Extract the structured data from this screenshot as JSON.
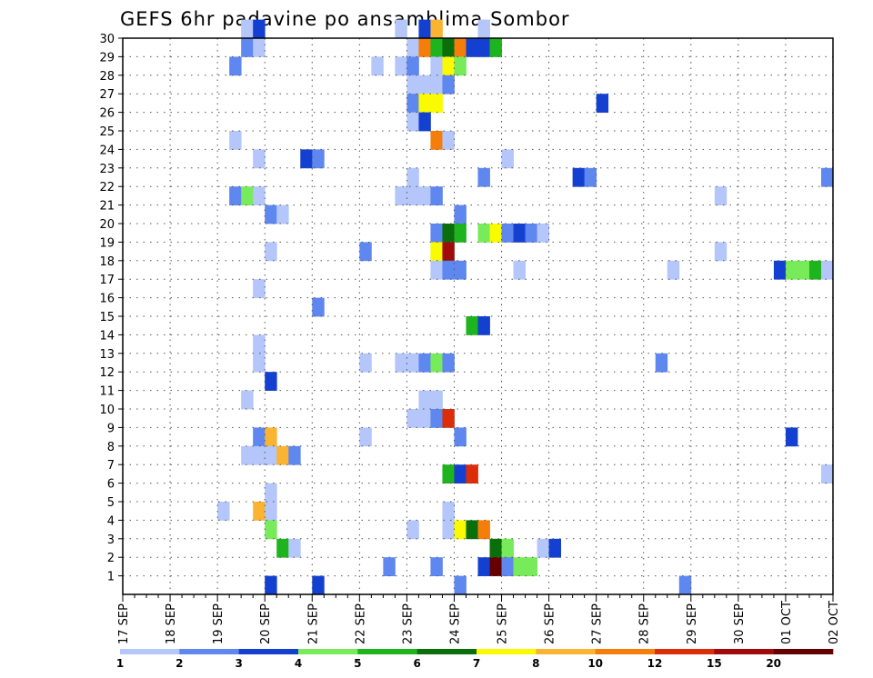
{
  "chart_data": {
    "type": "heatmap",
    "title": "GEFS 6hr padavine po ansamblima Sombor",
    "xlabel": "",
    "ylabel": "",
    "x_tick_labels": [
      "17 SEP",
      "18 SEP",
      "19 SEP",
      "20 SEP",
      "21 SEP",
      "22 SEP",
      "23 SEP",
      "24 SEP",
      "25 SEP",
      "26 SEP",
      "27 SEP",
      "28 SEP",
      "29 SEP",
      "30 SEP",
      "01 OCT",
      "02 OCT"
    ],
    "y_tick_labels": [
      "1",
      "2",
      "3",
      "4",
      "5",
      "6",
      "7",
      "8",
      "9",
      "10",
      "11",
      "12",
      "13",
      "14",
      "15",
      "16",
      "17",
      "18",
      "19",
      "20",
      "21",
      "22",
      "23",
      "24",
      "25",
      "26",
      "27",
      "28",
      "29",
      "30"
    ],
    "xlim_steps": [
      0,
      60
    ],
    "ylim_members": [
      0,
      30
    ],
    "grid": true,
    "legend_placement": "bottom",
    "colorbar": {
      "labels": [
        "1",
        "2",
        "3",
        "4",
        "5",
        "6",
        "7",
        "8",
        "10",
        "12",
        "15",
        "20"
      ],
      "colors": [
        "#b4c6fa",
        "#5f87f0",
        "#1440d2",
        "#78eb5a",
        "#1eb41e",
        "#0a6e0a",
        "#fafa00",
        "#fab432",
        "#f57d0a",
        "#dc2d0a",
        "#a00a0a",
        "#640000"
      ]
    },
    "cells": [
      [
        10,
        30,
        0
      ],
      [
        11,
        30,
        2
      ],
      [
        23,
        30,
        0
      ],
      [
        25,
        30,
        2
      ],
      [
        26,
        30,
        7
      ],
      [
        30,
        30,
        0
      ],
      [
        10,
        29,
        1
      ],
      [
        11,
        29,
        0
      ],
      [
        24,
        29,
        0
      ],
      [
        25,
        29,
        8
      ],
      [
        26,
        29,
        4
      ],
      [
        27,
        29,
        5
      ],
      [
        28,
        29,
        8
      ],
      [
        29,
        29,
        2
      ],
      [
        30,
        29,
        2
      ],
      [
        31,
        29,
        4
      ],
      [
        9,
        28,
        1
      ],
      [
        21,
        28,
        0
      ],
      [
        23,
        28,
        0
      ],
      [
        24,
        28,
        1
      ],
      [
        26,
        28,
        0
      ],
      [
        27,
        28,
        6
      ],
      [
        28,
        28,
        3
      ],
      [
        24,
        27,
        0
      ],
      [
        25,
        27,
        0
      ],
      [
        26,
        27,
        0
      ],
      [
        27,
        27,
        1
      ],
      [
        24,
        26,
        1
      ],
      [
        25,
        26,
        6
      ],
      [
        26,
        26,
        6
      ],
      [
        40,
        26,
        2
      ],
      [
        24,
        25,
        0
      ],
      [
        25,
        25,
        2
      ],
      [
        9,
        24,
        0
      ],
      [
        26,
        24,
        8
      ],
      [
        27,
        24,
        0
      ],
      [
        11,
        23,
        0
      ],
      [
        15,
        23,
        2
      ],
      [
        16,
        23,
        1
      ],
      [
        32,
        23,
        0
      ],
      [
        24,
        22,
        0
      ],
      [
        30,
        22,
        1
      ],
      [
        38,
        22,
        2
      ],
      [
        39,
        22,
        1
      ],
      [
        59,
        22,
        1
      ],
      [
        9,
        21,
        1
      ],
      [
        10,
        21,
        3
      ],
      [
        11,
        21,
        0
      ],
      [
        23,
        21,
        0
      ],
      [
        24,
        21,
        0
      ],
      [
        25,
        21,
        0
      ],
      [
        26,
        21,
        1
      ],
      [
        50,
        21,
        0
      ],
      [
        12,
        20,
        1
      ],
      [
        13,
        20,
        0
      ],
      [
        28,
        20,
        1
      ],
      [
        26,
        19,
        1
      ],
      [
        27,
        19,
        5
      ],
      [
        28,
        19,
        4
      ],
      [
        30,
        19,
        3
      ],
      [
        31,
        19,
        6
      ],
      [
        32,
        19,
        1
      ],
      [
        33,
        19,
        2
      ],
      [
        34,
        19,
        1
      ],
      [
        35,
        19,
        0
      ],
      [
        12,
        18,
        0
      ],
      [
        20,
        18,
        1
      ],
      [
        26,
        18,
        6
      ],
      [
        27,
        18,
        10
      ],
      [
        50,
        18,
        0
      ],
      [
        26,
        17,
        0
      ],
      [
        27,
        17,
        1
      ],
      [
        28,
        17,
        1
      ],
      [
        33,
        17,
        0
      ],
      [
        46,
        17,
        0
      ],
      [
        55,
        17,
        2
      ],
      [
        56,
        17,
        3
      ],
      [
        57,
        17,
        3
      ],
      [
        58,
        17,
        4
      ],
      [
        59,
        17,
        0
      ],
      [
        11,
        16,
        0
      ],
      [
        16,
        15,
        1
      ],
      [
        29,
        14,
        4
      ],
      [
        30,
        14,
        2
      ],
      [
        11,
        13,
        0
      ],
      [
        11,
        12,
        0
      ],
      [
        20,
        12,
        0
      ],
      [
        23,
        12,
        0
      ],
      [
        24,
        12,
        0
      ],
      [
        25,
        12,
        1
      ],
      [
        26,
        12,
        3
      ],
      [
        27,
        12,
        1
      ],
      [
        45,
        12,
        1
      ],
      [
        12,
        11,
        2
      ],
      [
        10,
        10,
        0
      ],
      [
        25,
        10,
        0
      ],
      [
        26,
        10,
        0
      ],
      [
        24,
        9,
        0
      ],
      [
        25,
        9,
        0
      ],
      [
        26,
        9,
        1
      ],
      [
        27,
        9,
        9
      ],
      [
        11,
        8,
        1
      ],
      [
        12,
        8,
        7
      ],
      [
        20,
        8,
        0
      ],
      [
        28,
        8,
        1
      ],
      [
        56,
        8,
        2
      ],
      [
        10,
        7,
        0
      ],
      [
        11,
        7,
        0
      ],
      [
        12,
        7,
        0
      ],
      [
        13,
        7,
        7
      ],
      [
        14,
        7,
        1
      ],
      [
        27,
        6,
        4
      ],
      [
        28,
        6,
        2
      ],
      [
        29,
        6,
        9
      ],
      [
        59,
        6,
        0
      ],
      [
        12,
        5,
        0
      ],
      [
        8,
        4,
        0
      ],
      [
        11,
        4,
        7
      ],
      [
        12,
        4,
        0
      ],
      [
        27,
        4,
        0
      ],
      [
        12,
        3,
        3
      ],
      [
        24,
        3,
        0
      ],
      [
        27,
        3,
        0
      ],
      [
        28,
        3,
        6
      ],
      [
        29,
        3,
        5
      ],
      [
        30,
        3,
        8
      ],
      [
        13,
        2,
        4
      ],
      [
        14,
        2,
        0
      ],
      [
        31,
        2,
        5
      ],
      [
        32,
        2,
        3
      ],
      [
        35,
        2,
        0
      ],
      [
        36,
        2,
        2
      ],
      [
        22,
        1,
        1
      ],
      [
        26,
        1,
        1
      ],
      [
        30,
        1,
        2
      ],
      [
        31,
        1,
        11
      ],
      [
        32,
        1,
        1
      ],
      [
        33,
        1,
        3
      ],
      [
        34,
        1,
        3
      ],
      [
        12,
        0,
        2
      ],
      [
        16,
        0,
        2
      ],
      [
        28,
        0,
        1
      ],
      [
        47,
        0,
        1
      ]
    ]
  }
}
